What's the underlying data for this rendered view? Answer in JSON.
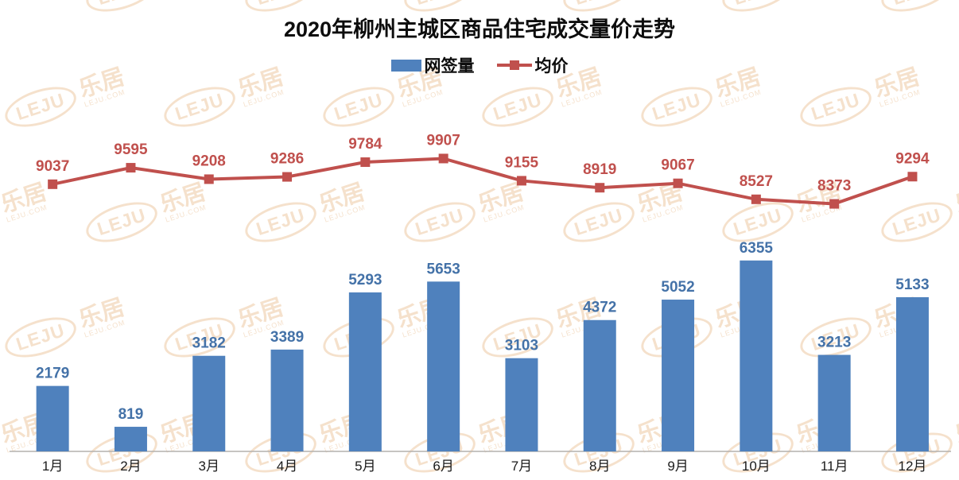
{
  "title": "2020年柳州主城区商品住宅成交量价走势",
  "legend": [
    {
      "label": "网签量",
      "color": "#4f81bd",
      "type": "bar"
    },
    {
      "label": "均价",
      "color": "#c0504d",
      "type": "line"
    }
  ],
  "watermark": {
    "logo": "LEJU",
    "brand": "乐居",
    "domain": "LEJU.COM",
    "color": "#edc9a3"
  },
  "colors": {
    "bar": "#4f81bd",
    "bar_label": "#4472a8",
    "line": "#c0504d",
    "line_label": "#c0504d",
    "axis_line": "#b3b1ae",
    "month_label": "#1a1a1a",
    "title": "#0d0d0d"
  },
  "chart_data": {
    "type": "bar",
    "subtype": "combo-bar-line",
    "title": "2020年柳州主城区商品住宅成交量价走势",
    "categories": [
      "1月",
      "2月",
      "3月",
      "4月",
      "5月",
      "6月",
      "7月",
      "8月",
      "9月",
      "10月",
      "11月",
      "12月"
    ],
    "series": [
      {
        "name": "网签量",
        "type": "bar",
        "color": "#4f81bd",
        "values": [
          2179,
          819,
          3182,
          3389,
          5293,
          5653,
          3103,
          4372,
          5052,
          6355,
          3213,
          5133
        ]
      },
      {
        "name": "均价",
        "type": "line",
        "color": "#c0504d",
        "values": [
          9037,
          9595,
          9208,
          9286,
          9784,
          9907,
          9155,
          8919,
          9067,
          8527,
          8373,
          9294
        ]
      }
    ],
    "xlabel": "",
    "ylabel": "",
    "y_axis_visible": false,
    "gridlines": false,
    "data_labels": true,
    "legend_position": "top"
  }
}
